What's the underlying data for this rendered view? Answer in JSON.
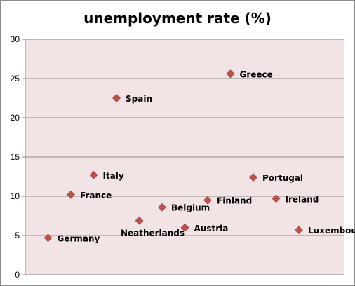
{
  "chart_data": {
    "type": "scatter",
    "title": "unemployment rate (%)",
    "xlabel": "",
    "ylabel": "",
    "ylim": [
      0,
      30
    ],
    "y_ticks": [
      0,
      5,
      10,
      15,
      20,
      25,
      30
    ],
    "x_range": [
      0,
      14
    ],
    "grid": true,
    "legend": "none",
    "plot_background": "#f2e4e4",
    "marker_color": "#c0504d",
    "points": [
      {
        "label": "Germany",
        "x": 1,
        "y": 4.7
      },
      {
        "label": "France",
        "x": 2,
        "y": 10.2
      },
      {
        "label": "Italy",
        "x": 3,
        "y": 12.7
      },
      {
        "label": "Spain",
        "x": 4,
        "y": 22.5
      },
      {
        "label": "Neatherlands",
        "x": 5,
        "y": 6.9
      },
      {
        "label": "Belgium",
        "x": 6,
        "y": 8.6
      },
      {
        "label": "Austria",
        "x": 7,
        "y": 6.0
      },
      {
        "label": "Finland",
        "x": 8,
        "y": 9.5
      },
      {
        "label": "Greece",
        "x": 9,
        "y": 25.6
      },
      {
        "label": "Portugal",
        "x": 10,
        "y": 12.4
      },
      {
        "label": "Ireland",
        "x": 11,
        "y": 9.7
      },
      {
        "label": "Luxembourg",
        "x": 12,
        "y": 5.7
      }
    ]
  }
}
